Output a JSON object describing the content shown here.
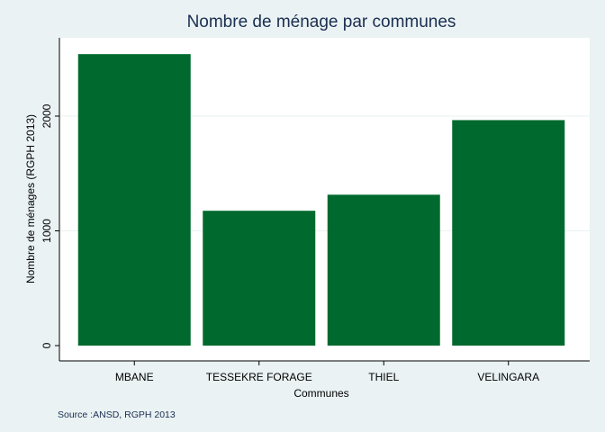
{
  "colors": {
    "background": "#eaf2f3",
    "plot_background": "#ffffff",
    "bar": "#006a2e",
    "title": "#1a2e50",
    "gridline": "#eaf2f3",
    "axis": "#000000"
  },
  "chart_data": {
    "type": "bar",
    "title": "Nombre de ménage par communes",
    "xlabel": "Communes",
    "ylabel": "Nombre de ménages (RGPH 2013)",
    "categories": [
      "MBANE",
      "TESSEKRE FORAGE",
      "THIEL",
      "VELINGARA"
    ],
    "values": [
      2540,
      1175,
      1315,
      1965
    ],
    "ylim": [
      0,
      2700
    ],
    "yticks": [
      0,
      1000,
      2000
    ],
    "ytick_labels": [
      "0",
      "1000",
      "2000"
    ],
    "grid": true,
    "legend": "none"
  },
  "source_note": "Source :ANSD, RGPH 2013"
}
